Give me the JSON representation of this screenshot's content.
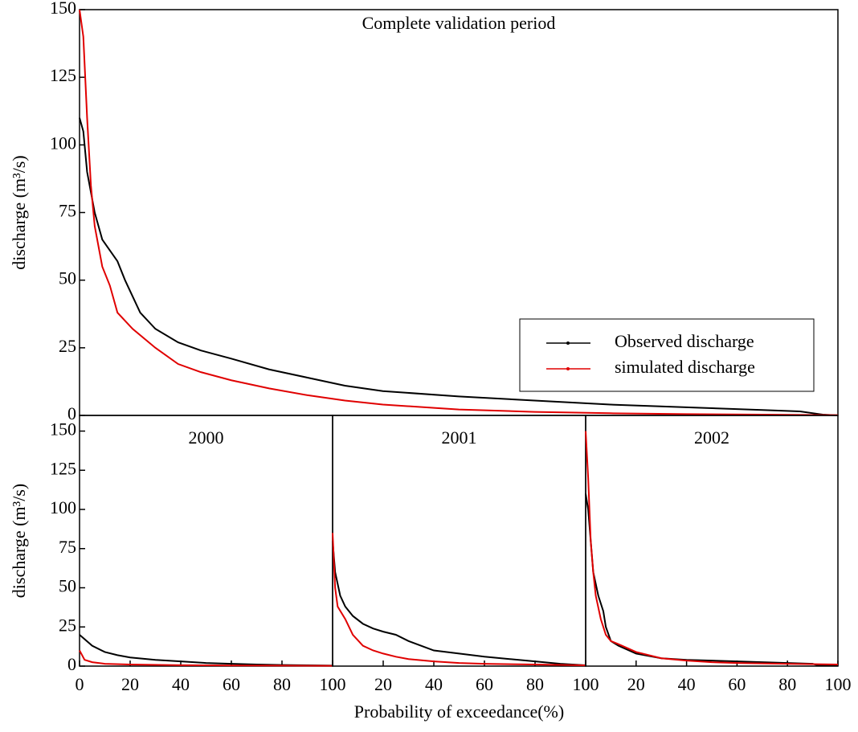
{
  "chart_data": [
    {
      "type": "line",
      "title": "Complete validation period",
      "y_label": "discharge (m³/s)",
      "xlim": [
        0,
        100
      ],
      "ylim": [
        0,
        150
      ],
      "yticks": [
        0,
        25,
        50,
        75,
        100,
        125,
        150
      ],
      "legend": "lower right",
      "series": [
        {
          "name": "Observed discharge",
          "color": "#000000",
          "x": [
            0,
            0.5,
            1,
            2,
            3,
            5,
            6,
            8,
            10,
            13,
            16,
            20,
            25,
            30,
            35,
            40,
            50,
            60,
            70,
            80,
            90,
            95,
            98,
            100
          ],
          "values": [
            110,
            105,
            90,
            75,
            65,
            57,
            50,
            38,
            32,
            27,
            24,
            21,
            17,
            14,
            11,
            9,
            7,
            5.5,
            4,
            3,
            2,
            1.5,
            0.3,
            0
          ]
        },
        {
          "name": "simulated discharge",
          "color": "#e00000",
          "x": [
            0,
            0.5,
            1,
            1.5,
            2,
            3,
            4,
            5,
            7,
            10,
            13,
            16,
            20,
            25,
            30,
            35,
            40,
            50,
            60,
            70,
            80,
            90,
            100
          ],
          "values": [
            150,
            140,
            110,
            85,
            70,
            55,
            48,
            38,
            32,
            25,
            19,
            16,
            13,
            10,
            7.5,
            5.5,
            4,
            2.2,
            1.3,
            0.8,
            0.5,
            0.3,
            0.1
          ]
        }
      ]
    },
    {
      "type": "line",
      "title": "2000",
      "y_label": "discharge (m³/s)",
      "xlim": [
        0,
        100
      ],
      "xticks": [
        0,
        20,
        40,
        60,
        80,
        100
      ],
      "ylim": [
        0,
        160
      ],
      "yticks": [
        0,
        25,
        50,
        75,
        100,
        125,
        150
      ],
      "series": [
        {
          "color": "#000000",
          "x": [
            0,
            5,
            10,
            15,
            20,
            30,
            40,
            50,
            60,
            70,
            80,
            90,
            100
          ],
          "values": [
            20,
            13,
            9,
            7,
            5.5,
            4,
            3,
            2,
            1.5,
            1,
            0.7,
            0.5,
            0.3
          ]
        },
        {
          "color": "#e00000",
          "x": [
            0,
            2,
            5,
            10,
            20,
            40,
            60,
            80,
            100
          ],
          "values": [
            10,
            4,
            2.5,
            1.5,
            1,
            0.6,
            0.4,
            0.3,
            0.2
          ]
        }
      ]
    },
    {
      "type": "line",
      "title": "2001",
      "x_label": "Probability of exceedance(%)",
      "xlim": [
        0,
        100
      ],
      "xticks": [
        0,
        20,
        40,
        60,
        80,
        100
      ],
      "ylim": [
        0,
        160
      ],
      "series": [
        {
          "color": "#000000",
          "x": [
            0,
            1,
            3,
            5,
            8,
            12,
            16,
            20,
            25,
            30,
            35,
            40,
            50,
            60,
            70,
            80,
            90,
            100
          ],
          "values": [
            80,
            60,
            45,
            38,
            32,
            27,
            24,
            22,
            20,
            16,
            13,
            10,
            8,
            6,
            4.5,
            3,
            1.5,
            0.5
          ]
        },
        {
          "color": "#e00000",
          "x": [
            0,
            1,
            2,
            5,
            8,
            12,
            16,
            20,
            25,
            30,
            40,
            50,
            60,
            80,
            100
          ],
          "values": [
            85,
            50,
            38,
            30,
            20,
            13,
            10,
            8,
            6,
            4.5,
            3,
            2,
            1.5,
            1,
            0.5
          ]
        }
      ]
    },
    {
      "type": "line",
      "title": "2002",
      "xlim": [
        0,
        100
      ],
      "xticks": [
        0,
        20,
        40,
        60,
        80,
        100
      ],
      "ylim": [
        0,
        160
      ],
      "series": [
        {
          "color": "#000000",
          "x": [
            0,
            1,
            2,
            3,
            5,
            7,
            8,
            10,
            13,
            20,
            30,
            40,
            50,
            60,
            70,
            80,
            90,
            92,
            100
          ],
          "values": [
            110,
            100,
            80,
            60,
            45,
            35,
            25,
            16,
            13,
            8,
            5,
            4,
            3.5,
            3,
            2.5,
            2,
            1.5,
            0.5,
            0.5
          ]
        },
        {
          "color": "#e00000",
          "x": [
            0,
            1,
            2,
            3,
            4,
            6,
            8,
            10,
            13,
            20,
            30,
            40,
            50,
            60,
            80,
            100
          ],
          "values": [
            150,
            120,
            80,
            60,
            45,
            30,
            20,
            16,
            14,
            9,
            5,
            3.5,
            2.5,
            2,
            1.5,
            1
          ]
        }
      ]
    }
  ]
}
